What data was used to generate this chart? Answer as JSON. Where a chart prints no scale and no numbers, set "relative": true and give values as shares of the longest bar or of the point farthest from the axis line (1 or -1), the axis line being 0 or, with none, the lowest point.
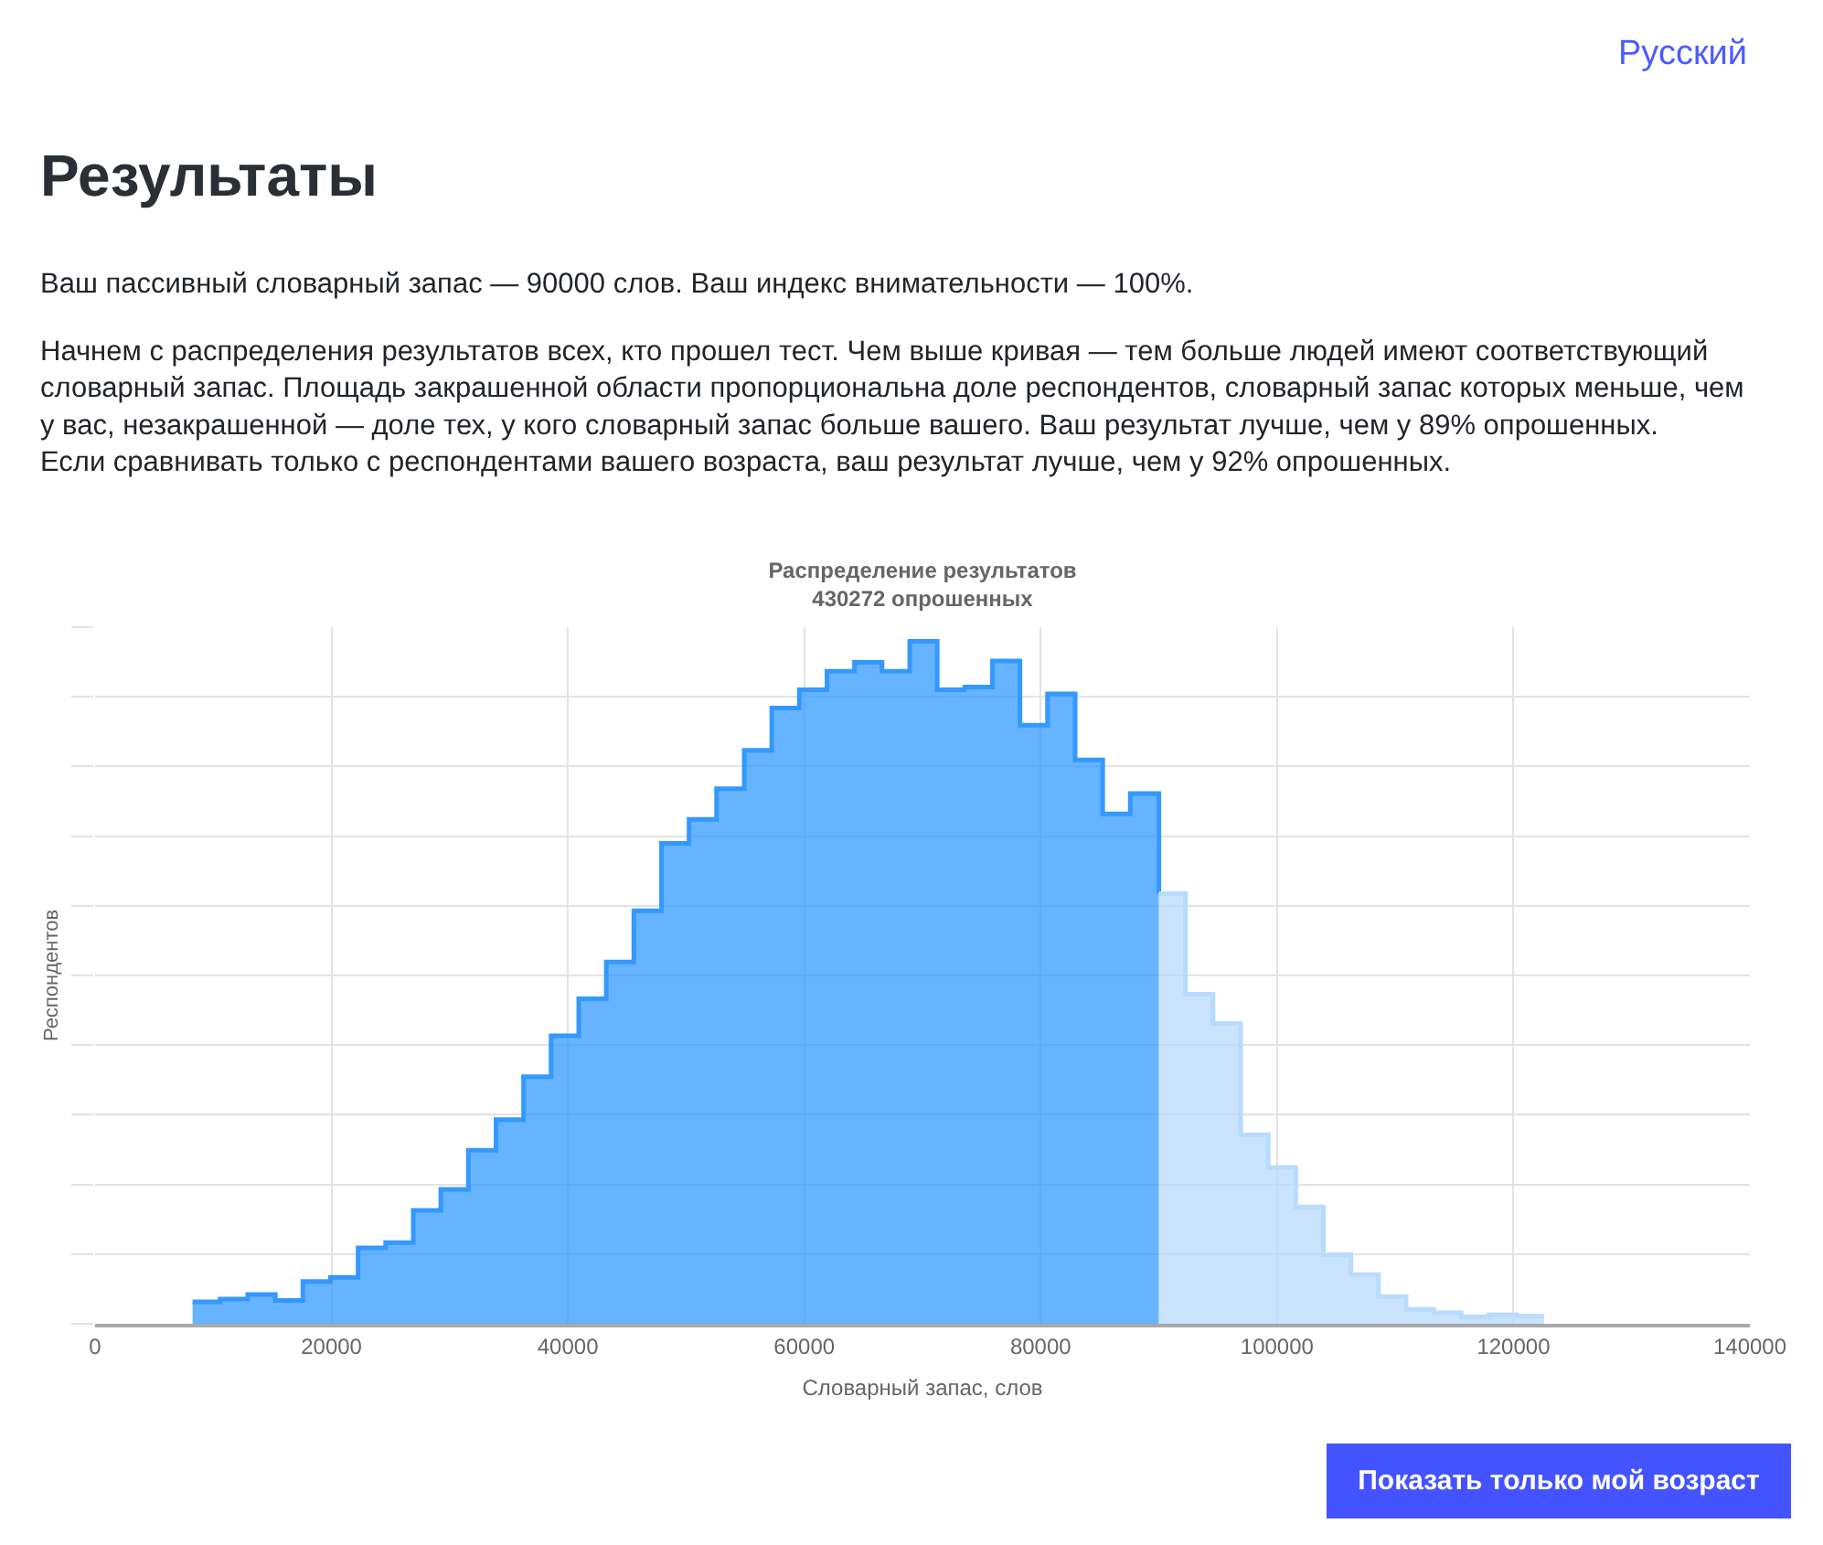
{
  "chart_data": {
    "type": "area",
    "title": "Распределение результатов",
    "subtitle": "430272 опрошенных",
    "xlabel": "Словарный запас, слов",
    "ylabel": "Респондентов",
    "annotations": [
      "Результаты",
      "Ваш пассивный словарный запас — 90000 слов. Ваш индекс внимательности — 100%.",
      "Начнем с распределения результатов всех, кто прошел тест. Чем выше кривая — тем больше людей имеют соответствующий словарный запас. Площадь закрашенной области пропорциональна доле респондентов, словарный запас которых меньше, чем у вас, незакрашенной — доле тех, у кого словарный запас больше вашего. Ваш результат лучше, чем у 89% опрошенных. Если сравнивать только с респондентами вашего возраста, ваш результат лучше, чем у 92% опрошенных.",
      "Русский",
      "Показать только мой возраст"
    ],
    "relative": true,
    "xlim": [
      0,
      140000
    ],
    "xticks": [
      0,
      20000,
      40000,
      60000,
      80000,
      100000,
      120000,
      140000
    ],
    "grid": true,
    "series": [
      {
        "color": "#3399ff",
        "x": [
          8250,
          10580,
          10580,
          12920,
          12920,
          15250,
          15250,
          17580,
          17580,
          19920,
          19920,
          22250,
          22250,
          24580,
          24580,
          26920,
          26920,
          29250,
          29250,
          31580,
          31580,
          33920,
          33920,
          36250,
          36250,
          38580,
          38580,
          40920,
          40920,
          43250,
          43250,
          45580,
          45580,
          47920,
          47920,
          50250,
          50250,
          52580,
          52580,
          54920,
          54920,
          57250,
          57250,
          59580,
          59580,
          61920,
          61920,
          64250,
          64250,
          66580,
          66580,
          68920,
          68920,
          71250,
          71250,
          73580,
          73580,
          75920,
          75920,
          78250,
          78250,
          80580,
          80580,
          82920,
          82920,
          85250,
          85250,
          87580,
          87580,
          90000,
          90000
        ],
        "values": [
          0.032,
          0.032,
          0.036,
          0.036,
          0.043,
          0.043,
          0.034,
          0.034,
          0.062,
          0.062,
          0.068,
          0.068,
          0.111,
          0.111,
          0.119,
          0.119,
          0.166,
          0.166,
          0.197,
          0.197,
          0.254,
          0.254,
          0.299,
          0.299,
          0.362,
          0.362,
          0.422,
          0.422,
          0.476,
          0.476,
          0.53,
          0.53,
          0.605,
          0.605,
          0.704,
          0.704,
          0.739,
          0.739,
          0.784,
          0.784,
          0.84,
          0.84,
          0.902,
          0.902,
          0.929,
          0.929,
          0.956,
          0.956,
          0.969,
          0.969,
          0.956,
          0.956,
          1,
          1,
          0.929,
          0.929,
          0.933,
          0.933,
          0.971,
          0.971,
          0.877,
          0.877,
          0.923,
          0.923,
          0.826,
          0.826,
          0.747,
          0.747,
          0.777,
          0.777,
          0.63
        ]
      },
      {
        "color": "#b8dbff",
        "x": [
          90000,
          92250,
          92250,
          94580,
          94580,
          96920,
          96920,
          99250,
          99250,
          101580,
          101580,
          103920,
          103920,
          106250,
          106250,
          108580,
          108580,
          110920,
          110920,
          113250,
          113250,
          115580,
          115580,
          117920,
          117920,
          120250,
          120250,
          122580
        ],
        "values": [
          0.63,
          0.63,
          0.483,
          0.483,
          0.44,
          0.44,
          0.277,
          0.277,
          0.229,
          0.229,
          0.171,
          0.171,
          0.101,
          0.101,
          0.072,
          0.072,
          0.04,
          0.04,
          0.021,
          0.021,
          0.016,
          0.016,
          0.01,
          0.01,
          0.013,
          0.013,
          0.011,
          0.011
        ]
      }
    ]
  }
}
